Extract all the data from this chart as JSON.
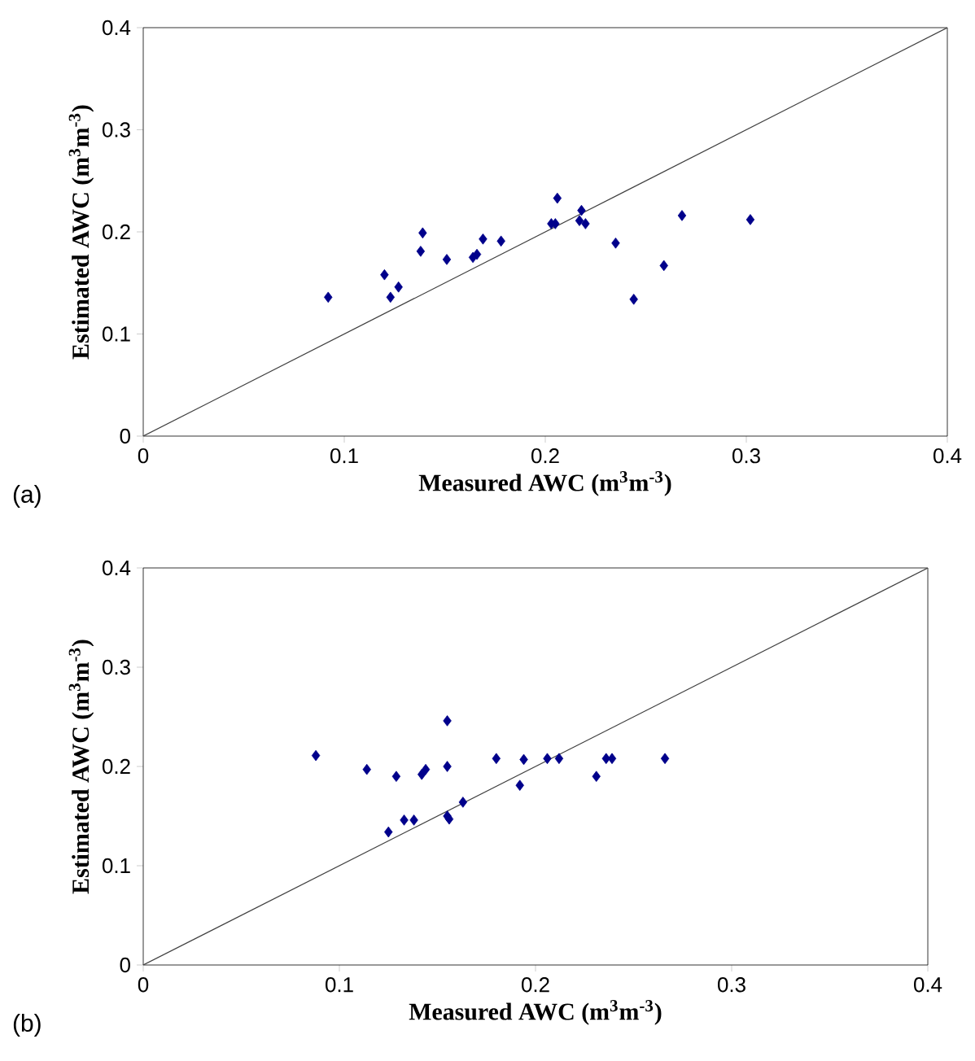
{
  "chart_data": [
    {
      "type": "scatter",
      "xlabel": "Measured AWC  (m$^{3}$m$^{-3}$)",
      "ylabel": "Estimated AWC (m$^{3}$m$^{-3}$)",
      "xlim": [
        0,
        0.4
      ],
      "ylim": [
        0,
        0.4
      ],
      "xticks": [
        0,
        0.1,
        0.2,
        0.3,
        0.4
      ],
      "yticks": [
        0,
        0.1,
        0.2,
        0.3,
        0.4
      ],
      "marker": "diamond",
      "grid": false,
      "annotations": [
        "(a)"
      ],
      "series": [
        {
          "color": "#00008b",
          "x": [
            0.092,
            0.12,
            0.123,
            0.127,
            0.138,
            0.139,
            0.151,
            0.164,
            0.166,
            0.169,
            0.178,
            0.203,
            0.205,
            0.206,
            0.218,
            0.217,
            0.22,
            0.235,
            0.244,
            0.259,
            0.268,
            0.302
          ],
          "values": [
            0.136,
            0.158,
            0.136,
            0.146,
            0.181,
            0.199,
            0.173,
            0.175,
            0.178,
            0.193,
            0.191,
            0.208,
            0.208,
            0.233,
            0.221,
            0.211,
            0.208,
            0.189,
            0.134,
            0.167,
            0.216,
            0.212
          ]
        },
        {
          "type": "line",
          "marker": "none",
          "color": "#404040",
          "x": [
            0,
            0.4
          ],
          "values": [
            0,
            0.4
          ]
        }
      ]
    },
    {
      "type": "scatter",
      "xlabel": "Measured AWC  (m$^{3}$m$^{-3}$)",
      "ylabel": "Estimated AWC (m$^{3}$m$^{-3}$)",
      "xlim": [
        0,
        0.4
      ],
      "ylim": [
        0,
        0.4
      ],
      "xticks": [
        0,
        0.1,
        0.2,
        0.3,
        0.4
      ],
      "yticks": [
        0,
        0.1,
        0.2,
        0.3,
        0.4
      ],
      "marker": "diamond",
      "grid": false,
      "annotations": [
        "(b)"
      ],
      "series": [
        {
          "color": "#00008b",
          "x": [
            0.088,
            0.114,
            0.129,
            0.125,
            0.133,
            0.138,
            0.142,
            0.144,
            0.155,
            0.155,
            0.155,
            0.156,
            0.163,
            0.18,
            0.192,
            0.194,
            0.206,
            0.212,
            0.231,
            0.236,
            0.239,
            0.266
          ],
          "values": [
            0.211,
            0.197,
            0.19,
            0.134,
            0.146,
            0.146,
            0.192,
            0.197,
            0.246,
            0.2,
            0.15,
            0.147,
            0.164,
            0.208,
            0.181,
            0.207,
            0.208,
            0.208,
            0.19,
            0.208,
            0.208,
            0.208
          ]
        },
        {
          "type": "line",
          "marker": "none",
          "color": "#404040",
          "x": [
            0,
            0.4
          ],
          "values": [
            0,
            0.4
          ]
        }
      ]
    }
  ]
}
